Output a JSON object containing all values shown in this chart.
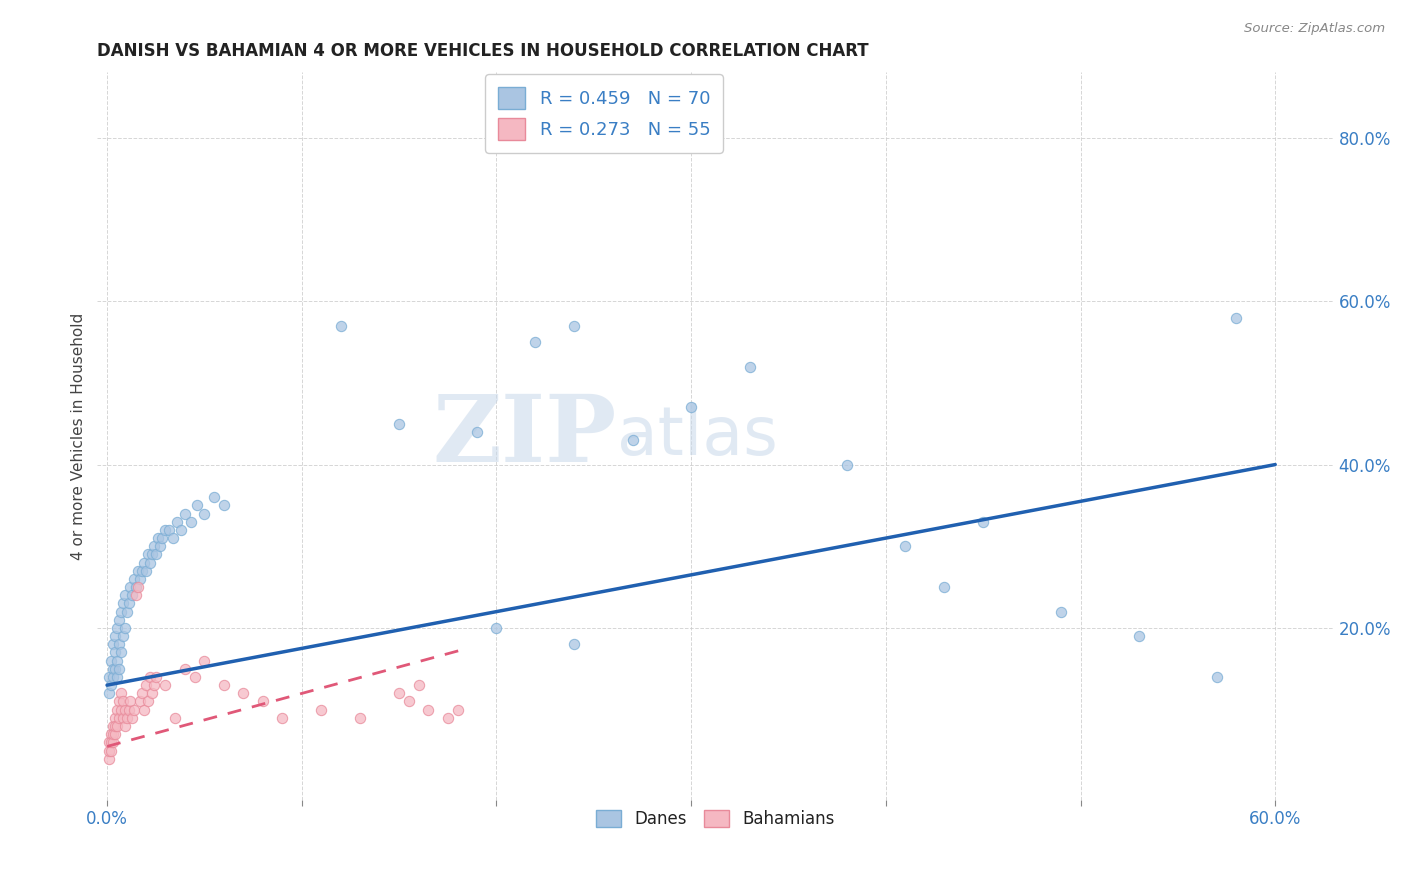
{
  "title": "DANISH VS BAHAMIAN 4 OR MORE VEHICLES IN HOUSEHOLD CORRELATION CHART",
  "source": "Source: ZipAtlas.com",
  "ylabel": "4 or more Vehicles in Household",
  "xlim": [
    -0.005,
    0.63
  ],
  "ylim": [
    -0.01,
    0.88
  ],
  "xtick_vals": [
    0.0,
    0.1,
    0.2,
    0.3,
    0.4,
    0.5,
    0.6
  ],
  "xtick_labels_show": [
    "0.0%",
    "",
    "",
    "",
    "",
    "",
    "60.0%"
  ],
  "ytick_vals": [
    0.2,
    0.4,
    0.6,
    0.8
  ],
  "ytick_labels": [
    "20.0%",
    "40.0%",
    "60.0%",
    "80.0%"
  ],
  "danes_color": "#aac5e2",
  "danes_edge_color": "#7aadd4",
  "bahamians_color": "#f5b8c2",
  "bahamians_edge_color": "#e88a9a",
  "danes_line_color": "#2060b0",
  "bahamians_line_color": "#e05878",
  "tick_color": "#3a7ec4",
  "danes_R": 0.459,
  "danes_N": 70,
  "bahamians_R": 0.273,
  "bahamians_N": 55,
  "danes_line_x0": 0.0,
  "danes_line_y0": 0.13,
  "danes_line_x1": 0.6,
  "danes_line_y1": 0.4,
  "bahamians_line_x0": 0.0,
  "bahamians_line_y0": 0.055,
  "bahamians_line_x1": 0.185,
  "bahamians_line_y1": 0.175,
  "danes_x": [
    0.001,
    0.001,
    0.002,
    0.002,
    0.003,
    0.003,
    0.003,
    0.004,
    0.004,
    0.004,
    0.005,
    0.005,
    0.005,
    0.006,
    0.006,
    0.006,
    0.007,
    0.007,
    0.008,
    0.008,
    0.009,
    0.009,
    0.01,
    0.011,
    0.012,
    0.013,
    0.014,
    0.015,
    0.016,
    0.017,
    0.018,
    0.019,
    0.02,
    0.021,
    0.022,
    0.023,
    0.024,
    0.025,
    0.026,
    0.027,
    0.028,
    0.03,
    0.032,
    0.034,
    0.036,
    0.038,
    0.04,
    0.043,
    0.046,
    0.05,
    0.055,
    0.06,
    0.12,
    0.15,
    0.19,
    0.22,
    0.24,
    0.27,
    0.3,
    0.33,
    0.38,
    0.41,
    0.45,
    0.49,
    0.53,
    0.57,
    0.2,
    0.24,
    0.43,
    0.58
  ],
  "danes_y": [
    0.14,
    0.12,
    0.16,
    0.13,
    0.15,
    0.18,
    0.14,
    0.17,
    0.15,
    0.19,
    0.16,
    0.2,
    0.14,
    0.21,
    0.18,
    0.15,
    0.22,
    0.17,
    0.23,
    0.19,
    0.24,
    0.2,
    0.22,
    0.23,
    0.25,
    0.24,
    0.26,
    0.25,
    0.27,
    0.26,
    0.27,
    0.28,
    0.27,
    0.29,
    0.28,
    0.29,
    0.3,
    0.29,
    0.31,
    0.3,
    0.31,
    0.32,
    0.32,
    0.31,
    0.33,
    0.32,
    0.34,
    0.33,
    0.35,
    0.34,
    0.36,
    0.35,
    0.57,
    0.45,
    0.44,
    0.55,
    0.57,
    0.43,
    0.47,
    0.52,
    0.4,
    0.3,
    0.33,
    0.22,
    0.19,
    0.14,
    0.2,
    0.18,
    0.25,
    0.58
  ],
  "bahamians_x": [
    0.001,
    0.001,
    0.001,
    0.002,
    0.002,
    0.002,
    0.003,
    0.003,
    0.003,
    0.004,
    0.004,
    0.004,
    0.005,
    0.005,
    0.006,
    0.006,
    0.007,
    0.007,
    0.008,
    0.008,
    0.009,
    0.009,
    0.01,
    0.011,
    0.012,
    0.013,
    0.014,
    0.015,
    0.016,
    0.017,
    0.018,
    0.019,
    0.02,
    0.021,
    0.022,
    0.023,
    0.024,
    0.025,
    0.03,
    0.035,
    0.04,
    0.045,
    0.05,
    0.06,
    0.07,
    0.08,
    0.09,
    0.11,
    0.13,
    0.15,
    0.155,
    0.16,
    0.165,
    0.175,
    0.18
  ],
  "bahamians_y": [
    0.06,
    0.04,
    0.05,
    0.07,
    0.05,
    0.06,
    0.08,
    0.06,
    0.07,
    0.09,
    0.07,
    0.08,
    0.1,
    0.08,
    0.11,
    0.09,
    0.12,
    0.1,
    0.11,
    0.09,
    0.1,
    0.08,
    0.09,
    0.1,
    0.11,
    0.09,
    0.1,
    0.24,
    0.25,
    0.11,
    0.12,
    0.1,
    0.13,
    0.11,
    0.14,
    0.12,
    0.13,
    0.14,
    0.13,
    0.09,
    0.15,
    0.14,
    0.16,
    0.13,
    0.12,
    0.11,
    0.09,
    0.1,
    0.09,
    0.12,
    0.11,
    0.13,
    0.1,
    0.09,
    0.1
  ],
  "watermark_zip": "ZIP",
  "watermark_atlas": "atlas",
  "background_color": "#ffffff",
  "grid_color": "#cccccc"
}
